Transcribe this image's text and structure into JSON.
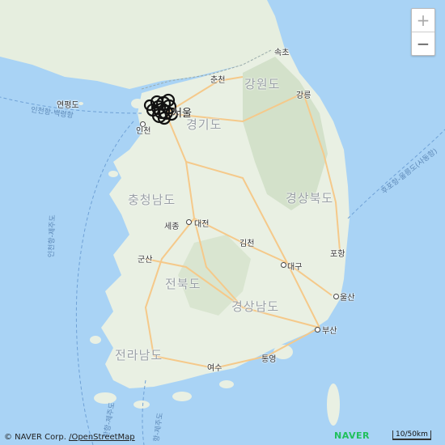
{
  "map": {
    "colors": {
      "sea": "#a9d3f5",
      "land": "#e9f0e3",
      "mountain": "#c9d9c1",
      "road": "#f5c98a",
      "marker": "#111111"
    },
    "provinces": {
      "gangwon": "강원도",
      "gyeonggi": "경기도",
      "chungnam": "충청남도",
      "gyeongbuk": "경상북도",
      "jeonbuk": "전북도",
      "gyeongnam": "경상남도",
      "jeonnam": "전라남도"
    },
    "cities": {
      "sokcho": "속초",
      "chuncheon": "춘천",
      "gangneung": "강릉",
      "seoul": "서울",
      "incheon": "인천",
      "sejong": "세종",
      "daejeon": "대전",
      "gimcheon": "김천",
      "pohang": "포항",
      "gunsan": "군산",
      "daegu": "대구",
      "ulsan": "울산",
      "busan": "부산",
      "tongyeong": "통영",
      "yeosu": "여수"
    },
    "islands": {
      "yeonpyeong": "연평도"
    },
    "ferry_routes": {
      "incheon_baengnyeong": "인천항-백령항",
      "incheon_jeju": "인천항-제주도",
      "hupo_ulleung": "후포항-울릉도(사동항)",
      "west_jeju": "한항-제주도",
      "south_jeju": "항-제주도"
    },
    "controls": {
      "zoom_in": "+",
      "zoom_out": "−"
    },
    "attribution": {
      "prefix": "© NAVER Corp.",
      "osm": "/OpenStreetMap"
    },
    "logo": "NAVER",
    "scale_label": "10/50km"
  }
}
